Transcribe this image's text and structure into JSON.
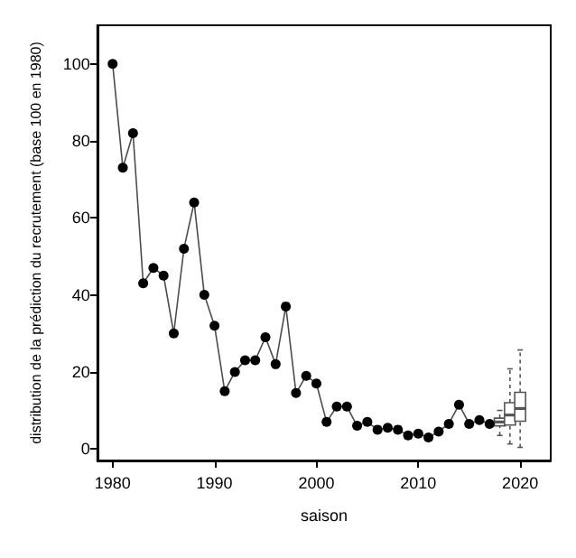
{
  "chart_data": {
    "type": "line",
    "xlabel": "saison",
    "ylabel": "distribution de la prédiction du recrutement (base 100 en 1980)",
    "xlim": [
      1978.5,
      2023
    ],
    "xticks": [
      1980,
      1990,
      2000,
      2010,
      2020
    ],
    "ylim": [
      -3,
      110
    ],
    "yticks": [
      0,
      20,
      40,
      60,
      80,
      100
    ],
    "grid": false,
    "series": [
      {
        "color": "#000000",
        "marker": "circle",
        "line_style": "solid",
        "x": [
          1980,
          1981,
          1982,
          1983,
          1984,
          1985,
          1986,
          1987,
          1988,
          1989,
          1990,
          1991,
          1992,
          1993,
          1994,
          1995,
          1996,
          1997,
          1998,
          1999,
          2000,
          2001,
          2002,
          2003,
          2004,
          2005,
          2006,
          2007,
          2008,
          2009,
          2010,
          2011,
          2012,
          2013,
          2014,
          2015,
          2016,
          2017
        ],
        "values": [
          100,
          73,
          82,
          43,
          47,
          45,
          30,
          52,
          64,
          40,
          32,
          15,
          20,
          23,
          23,
          29,
          22,
          37,
          14.5,
          19,
          17,
          7,
          11,
          11,
          6,
          7,
          5,
          5.5,
          5,
          3.5,
          4,
          3,
          4.5,
          6.5,
          11.5,
          6.5,
          7.5,
          6.5
        ]
      },
      {
        "type": "box",
        "color": "#555555",
        "x": [
          2018,
          2019,
          2020
        ],
        "boxes": [
          {
            "low": 3.5,
            "q1": 6,
            "median": 7,
            "q3": 8,
            "high": 10
          },
          {
            "low": 1.3,
            "q1": 6.2,
            "median": 8.8,
            "q3": 12,
            "high": 20.8
          },
          {
            "low": 0.4,
            "q1": 7.2,
            "median": 10.5,
            "q3": 14.7,
            "high": 25.7
          }
        ]
      }
    ]
  }
}
